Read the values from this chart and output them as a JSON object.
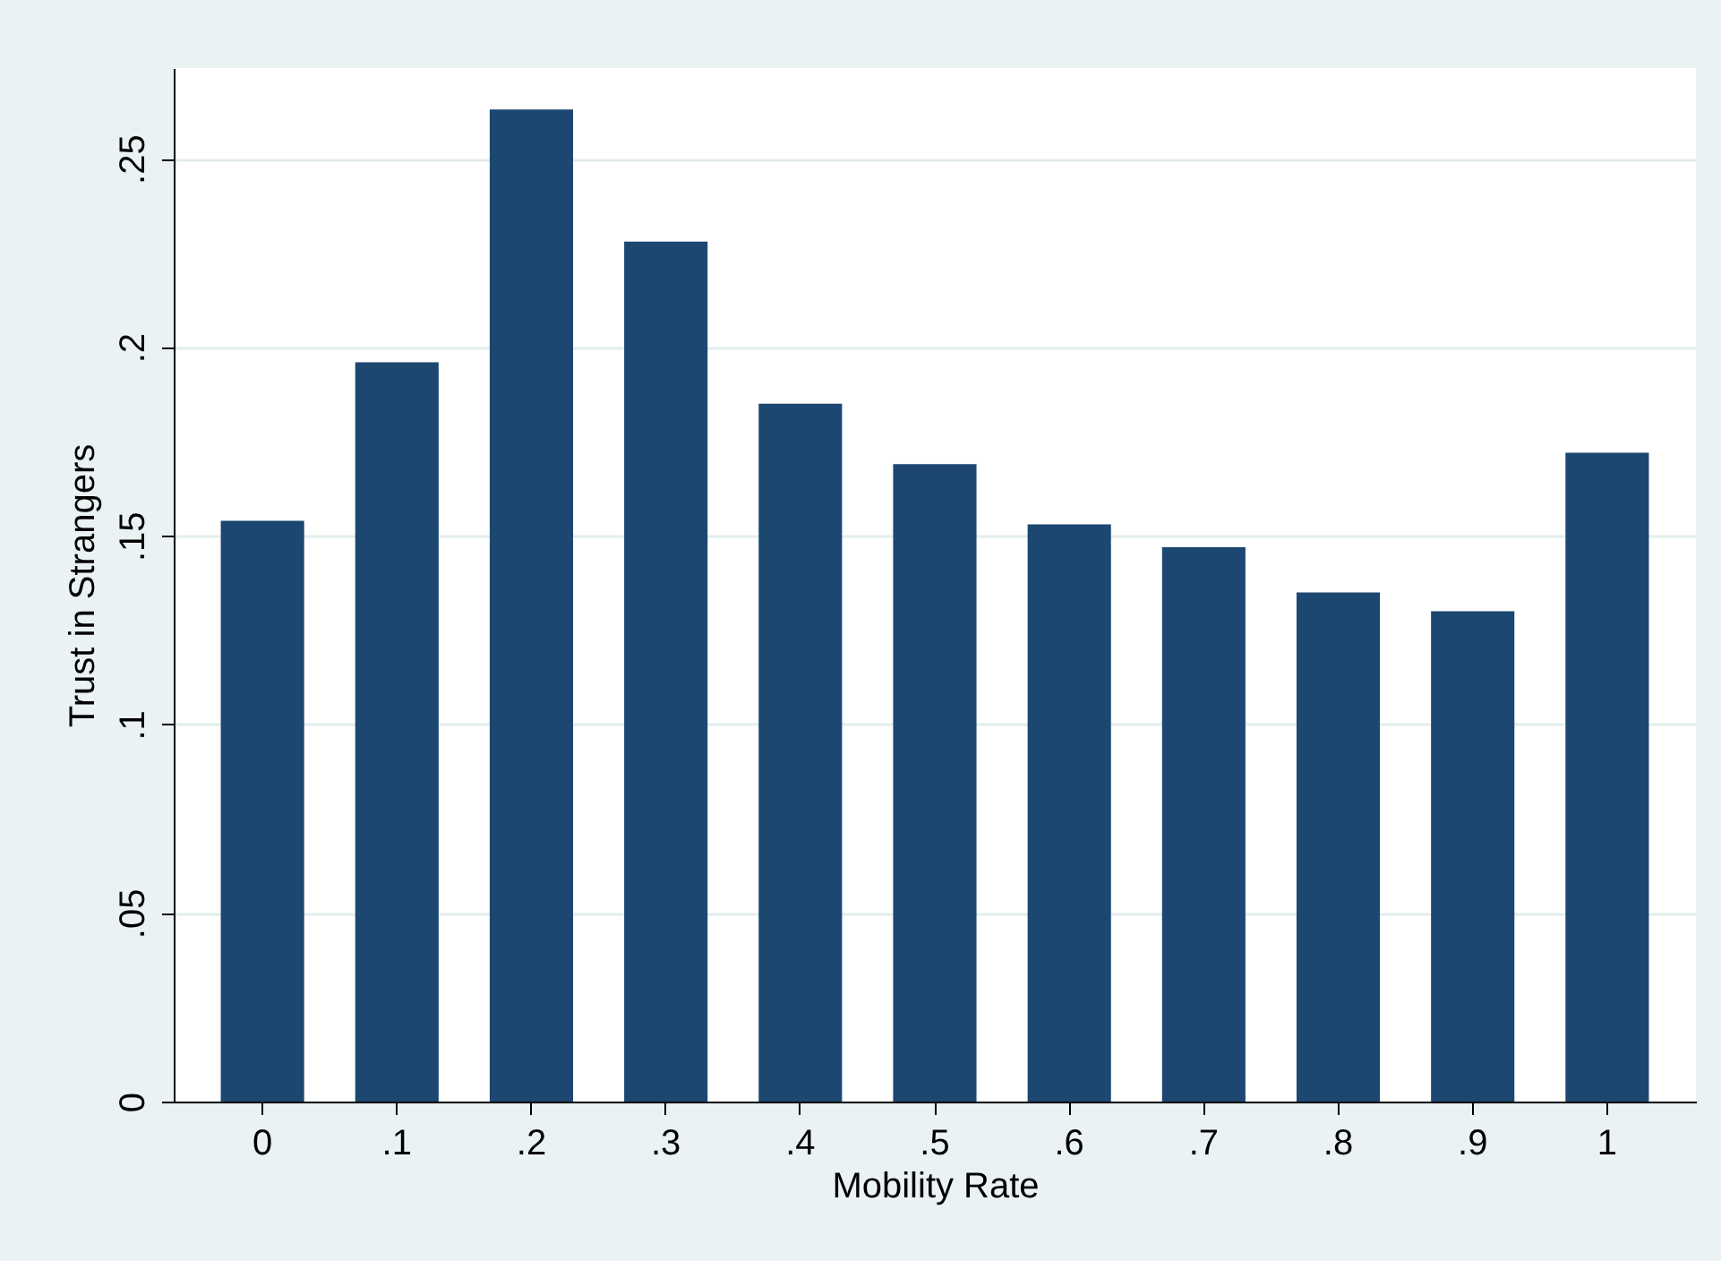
{
  "chart_data": {
    "type": "bar",
    "xlabel": "Mobility Rate",
    "ylabel": "Trust in Strangers",
    "categories": [
      "0",
      ".1",
      ".2",
      ".3",
      ".4",
      ".5",
      ".6",
      ".7",
      ".8",
      ".9",
      "1"
    ],
    "values": [
      0.154,
      0.196,
      0.263,
      0.228,
      0.185,
      0.169,
      0.153,
      0.147,
      0.135,
      0.13,
      0.172
    ],
    "color": "#1c4770",
    "ylim": [
      0,
      0.274
    ],
    "yticks": [
      {
        "value": 0,
        "label": "0"
      },
      {
        "value": 0.05,
        "label": ".05"
      },
      {
        "value": 0.1,
        "label": ".1"
      },
      {
        "value": 0.15,
        "label": ".15"
      },
      {
        "value": 0.2,
        "label": ".2"
      },
      {
        "value": 0.25,
        "label": ".25"
      }
    ],
    "grid": "y"
  }
}
